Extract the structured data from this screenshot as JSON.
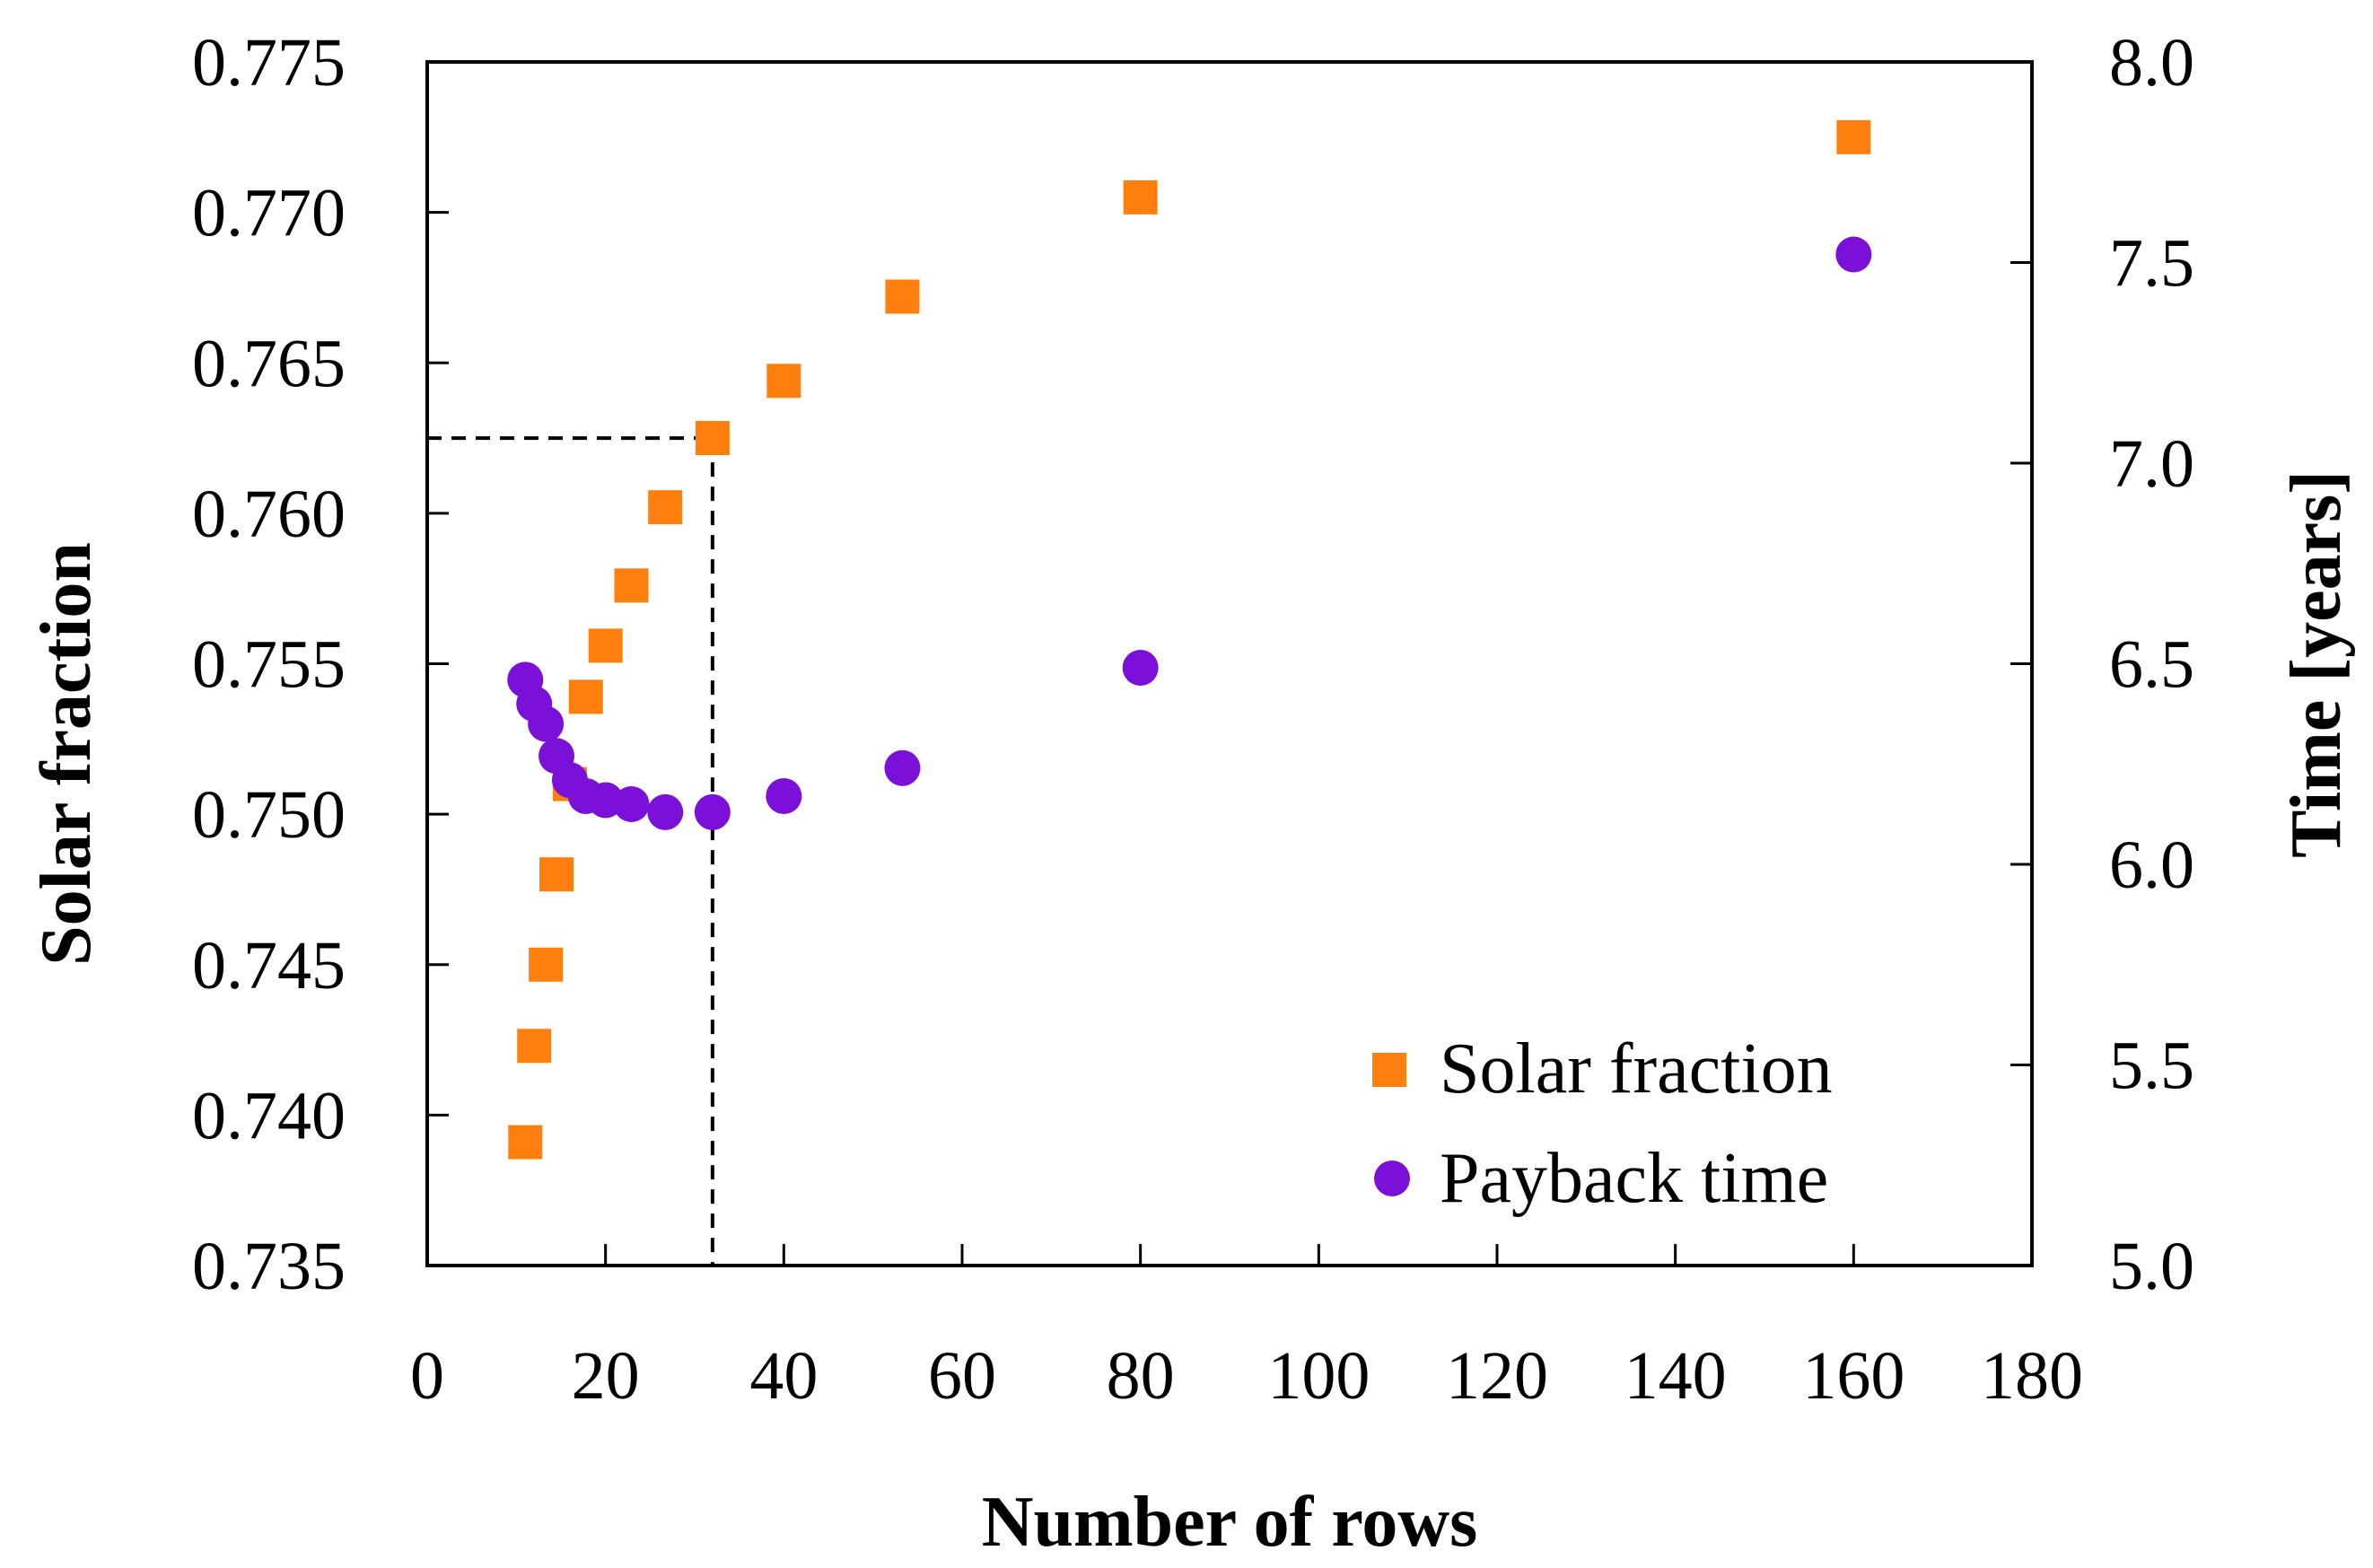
{
  "chart_data": {
    "type": "scatter",
    "title": "",
    "xlabel": "Number of rows",
    "ylabel_left": "Solar fraction",
    "ylabel_right": "Time [years]",
    "xlim": [
      0,
      180
    ],
    "ylim_left": [
      0.735,
      0.775
    ],
    "ylim_right": [
      5.0,
      8.0
    ],
    "grid": false,
    "x_ticks": [
      "0",
      "20",
      "40",
      "60",
      "80",
      "100",
      "120",
      "140",
      "160",
      "180"
    ],
    "y_left_ticks": [
      "0.735",
      "0.740",
      "0.745",
      "0.750",
      "0.755",
      "0.760",
      "0.765",
      "0.770",
      "0.775"
    ],
    "y_right_ticks": [
      "5.0",
      "5.5",
      "6.0",
      "6.5",
      "7.0",
      "7.5",
      "8.0"
    ],
    "reference_line": {
      "x": 32,
      "y_left": 0.7625,
      "style": "dashed"
    },
    "legend_position": "bottom-right",
    "series": [
      {
        "name": "Solar fraction",
        "axis": "left",
        "marker": "square",
        "color": "#FF7F0E",
        "x": [
          11,
          12,
          13.3,
          14.5,
          16,
          17.8,
          20,
          22.9,
          26.7,
          32,
          40,
          53.3,
          80,
          160
        ],
        "y": [
          0.7391,
          0.7423,
          0.745,
          0.748,
          0.751,
          0.7539,
          0.7556,
          0.7576,
          0.7602,
          0.7625,
          0.7644,
          0.7672,
          0.7705,
          0.7725
        ]
      },
      {
        "name": "Payback time",
        "axis": "right",
        "marker": "circle",
        "color": "#7B11D9",
        "x": [
          11,
          12,
          13.3,
          14.5,
          16,
          17.8,
          20,
          22.9,
          26.7,
          32,
          40,
          53.3,
          80,
          160
        ],
        "y": [
          6.46,
          6.4,
          6.35,
          6.27,
          6.21,
          6.17,
          6.16,
          6.15,
          6.13,
          6.13,
          6.17,
          6.24,
          6.49,
          7.52
        ]
      }
    ]
  }
}
